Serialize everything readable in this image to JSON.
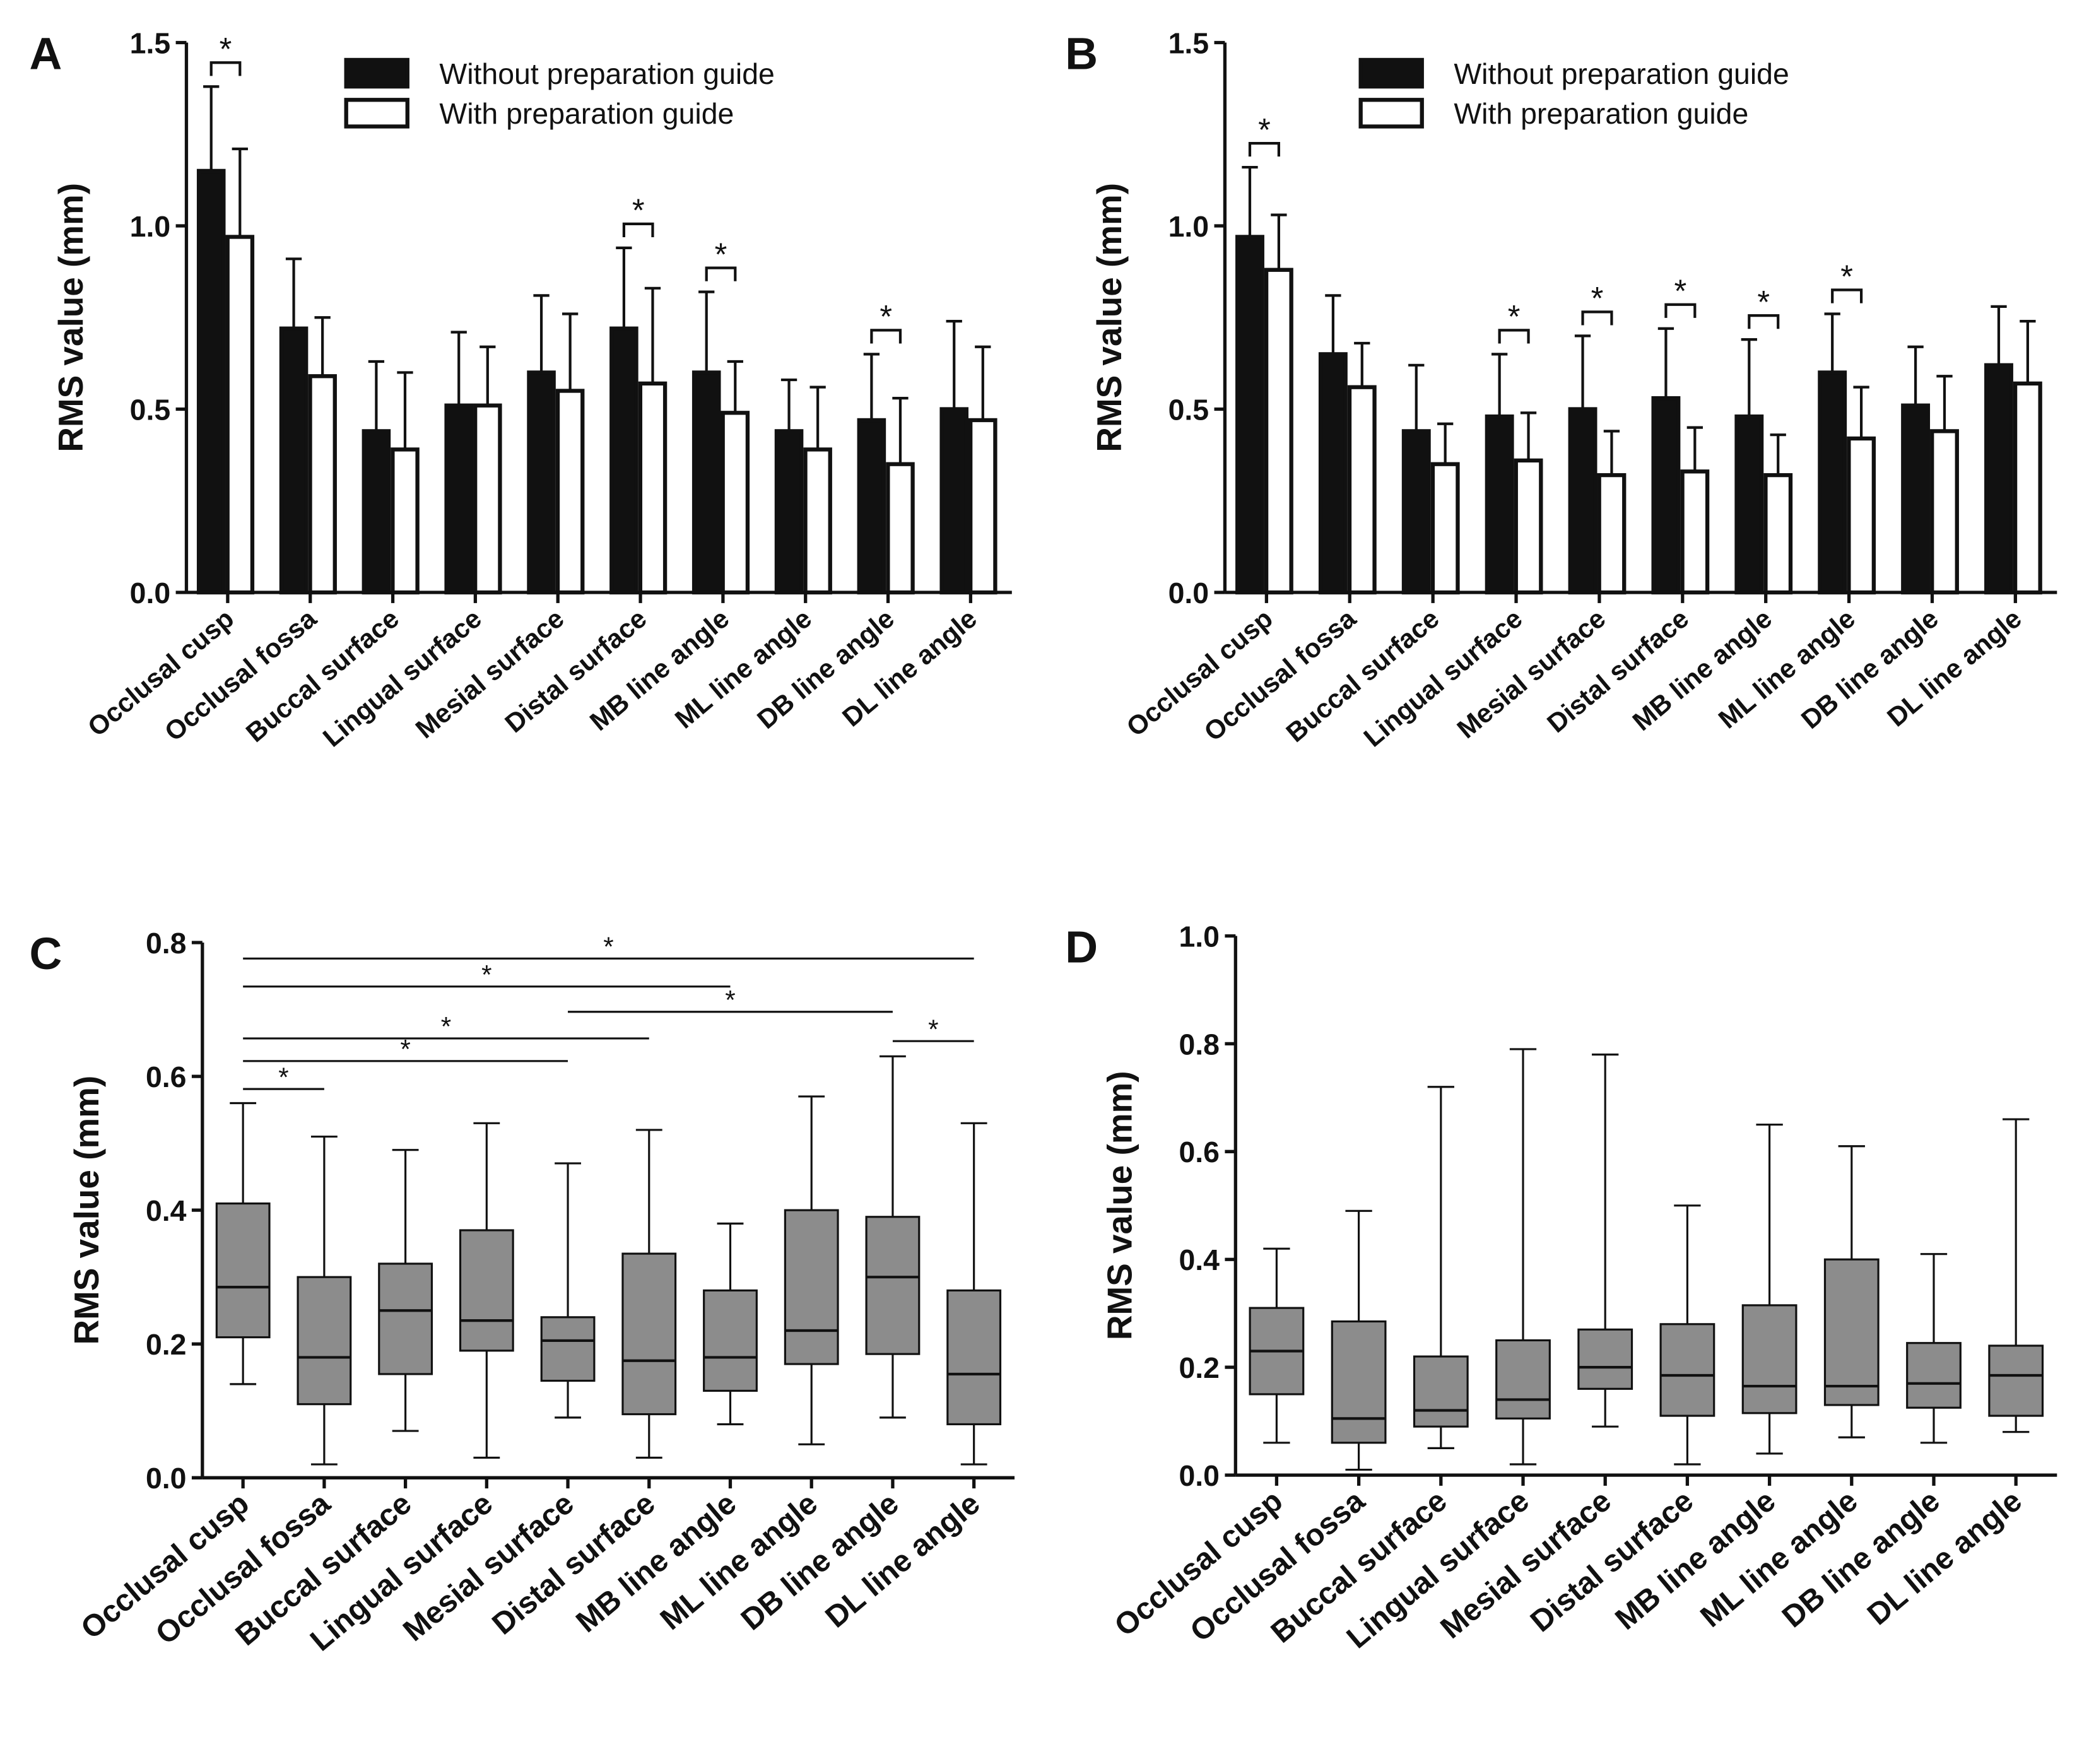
{
  "chart_data": [
    {
      "type": "bar",
      "panel_label": "A",
      "y_label": "RMS value (mm)",
      "categories": [
        "Occlusal cusp",
        "Occlusal fossa",
        "Buccal surface",
        "Lingual surface",
        "Mesial surface",
        "Distal surface",
        "MB line angle",
        "ML line angle",
        "DB line angle",
        "DL line angle"
      ],
      "series": [
        {
          "name": "Without preparation guide",
          "color": "#111111",
          "values": [
            1.15,
            0.72,
            0.44,
            0.51,
            0.6,
            0.72,
            0.6,
            0.44,
            0.47,
            0.5
          ],
          "errors": [
            0.23,
            0.19,
            0.19,
            0.2,
            0.21,
            0.22,
            0.22,
            0.14,
            0.18,
            0.24
          ]
        },
        {
          "name": "With preparation guide",
          "color": "#ffffff",
          "values": [
            0.97,
            0.59,
            0.39,
            0.51,
            0.55,
            0.57,
            0.49,
            0.39,
            0.35,
            0.47
          ],
          "errors": [
            0.24,
            0.16,
            0.21,
            0.16,
            0.21,
            0.26,
            0.14,
            0.17,
            0.18,
            0.2
          ]
        }
      ],
      "significance": {
        "label": "*",
        "categories": [
          0,
          5,
          6,
          8
        ]
      },
      "ylim": [
        0,
        1.5
      ],
      "yticks": [
        {
          "value": 0,
          "label": "0.0"
        },
        {
          "value": 0.5,
          "label": "0.5"
        },
        {
          "value": 1,
          "label": "1.0"
        },
        {
          "value": 1.5,
          "label": "1.5"
        }
      ]
    },
    {
      "type": "bar",
      "panel_label": "B",
      "y_label": "RMS value (mm)",
      "categories": [
        "Occlusal cusp",
        "Occlusal fossa",
        "Buccal surface",
        "Lingual surface",
        "Mesial surface",
        "Distal surface",
        "MB line angle",
        "ML line angle",
        "DB line angle",
        "DL line angle"
      ],
      "series": [
        {
          "name": "Without preparation guide",
          "color": "#111111",
          "values": [
            0.97,
            0.65,
            0.44,
            0.48,
            0.5,
            0.53,
            0.48,
            0.6,
            0.51,
            0.62
          ],
          "errors": [
            0.19,
            0.16,
            0.18,
            0.17,
            0.2,
            0.19,
            0.21,
            0.16,
            0.16,
            0.16
          ]
        },
        {
          "name": "With preparation guide",
          "color": "#ffffff",
          "values": [
            0.88,
            0.56,
            0.35,
            0.36,
            0.32,
            0.33,
            0.32,
            0.42,
            0.44,
            0.57
          ],
          "errors": [
            0.15,
            0.12,
            0.11,
            0.13,
            0.12,
            0.12,
            0.11,
            0.14,
            0.15,
            0.17
          ]
        }
      ],
      "significance": {
        "label": "*",
        "categories": [
          0,
          3,
          4,
          5,
          6,
          7
        ]
      },
      "ylim": [
        0,
        1.5
      ],
      "yticks": [
        {
          "value": 0,
          "label": "0.0"
        },
        {
          "value": 0.5,
          "label": "0.5"
        },
        {
          "value": 1,
          "label": "1.0"
        },
        {
          "value": 1.5,
          "label": "1.5"
        }
      ]
    },
    {
      "type": "box",
      "panel_label": "C",
      "y_label": "RMS value (mm)",
      "color": "#8c8c8c",
      "categories": [
        "Occlusal cusp",
        "Occlusal fossa",
        "Buccal surface",
        "Lingual surface",
        "Mesial surface",
        "Distal surface",
        "MB line angle",
        "ML line angle",
        "DB line angle",
        "DL line angle"
      ],
      "min": [
        0.14,
        0.02,
        0.07,
        0.03,
        0.09,
        0.03,
        0.08,
        0.05,
        0.09,
        0.02
      ],
      "q1": [
        0.21,
        0.11,
        0.155,
        0.19,
        0.145,
        0.095,
        0.13,
        0.17,
        0.185,
        0.08
      ],
      "median": [
        0.285,
        0.18,
        0.25,
        0.235,
        0.205,
        0.175,
        0.18,
        0.22,
        0.3,
        0.155
      ],
      "q3": [
        0.41,
        0.3,
        0.32,
        0.37,
        0.24,
        0.335,
        0.28,
        0.4,
        0.39,
        0.28
      ],
      "max": [
        0.56,
        0.51,
        0.49,
        0.53,
        0.47,
        0.52,
        0.38,
        0.57,
        0.63,
        0.53
      ],
      "significance": {
        "label": "*",
        "pairs": [
          [
            0,
            9
          ],
          [
            0,
            6
          ],
          [
            4,
            8
          ],
          [
            0,
            5
          ],
          [
            0,
            4
          ],
          [
            0,
            1
          ],
          [
            8,
            9
          ]
        ]
      },
      "ylim": [
        0,
        0.8
      ],
      "yticks": [
        {
          "value": 0,
          "label": "0.0"
        },
        {
          "value": 0.2,
          "label": "0.2"
        },
        {
          "value": 0.4,
          "label": "0.4"
        },
        {
          "value": 0.6,
          "label": "0.6"
        },
        {
          "value": 0.8,
          "label": "0.8"
        }
      ]
    },
    {
      "type": "box",
      "panel_label": "D",
      "y_label": "RMS value (mm)",
      "color": "#8c8c8c",
      "categories": [
        "Occlusal cusp",
        "Occlusal fossa",
        "Buccal surface",
        "Lingual surface",
        "Mesial surface",
        "Distal surface",
        "MB line angle",
        "ML line angle",
        "DB line angle",
        "DL line angle"
      ],
      "min": [
        0.06,
        0.01,
        0.05,
        0.02,
        0.09,
        0.02,
        0.04,
        0.07,
        0.06,
        0.08
      ],
      "q1": [
        0.15,
        0.06,
        0.09,
        0.105,
        0.16,
        0.11,
        0.115,
        0.13,
        0.125,
        0.11
      ],
      "median": [
        0.23,
        0.105,
        0.12,
        0.14,
        0.2,
        0.185,
        0.165,
        0.165,
        0.17,
        0.185
      ],
      "q3": [
        0.31,
        0.285,
        0.22,
        0.25,
        0.27,
        0.28,
        0.315,
        0.4,
        0.245,
        0.24
      ],
      "max": [
        0.42,
        0.49,
        0.72,
        0.79,
        0.78,
        0.5,
        0.65,
        0.61,
        0.41,
        0.66
      ],
      "ylim": [
        0,
        1.0
      ],
      "yticks": [
        {
          "value": 0,
          "label": "0.0"
        },
        {
          "value": 0.2,
          "label": "0.2"
        },
        {
          "value": 0.4,
          "label": "0.4"
        },
        {
          "value": 0.6,
          "label": "0.6"
        },
        {
          "value": 0.8,
          "label": "0.8"
        },
        {
          "value": 1.0,
          "label": "1.0"
        }
      ]
    }
  ]
}
